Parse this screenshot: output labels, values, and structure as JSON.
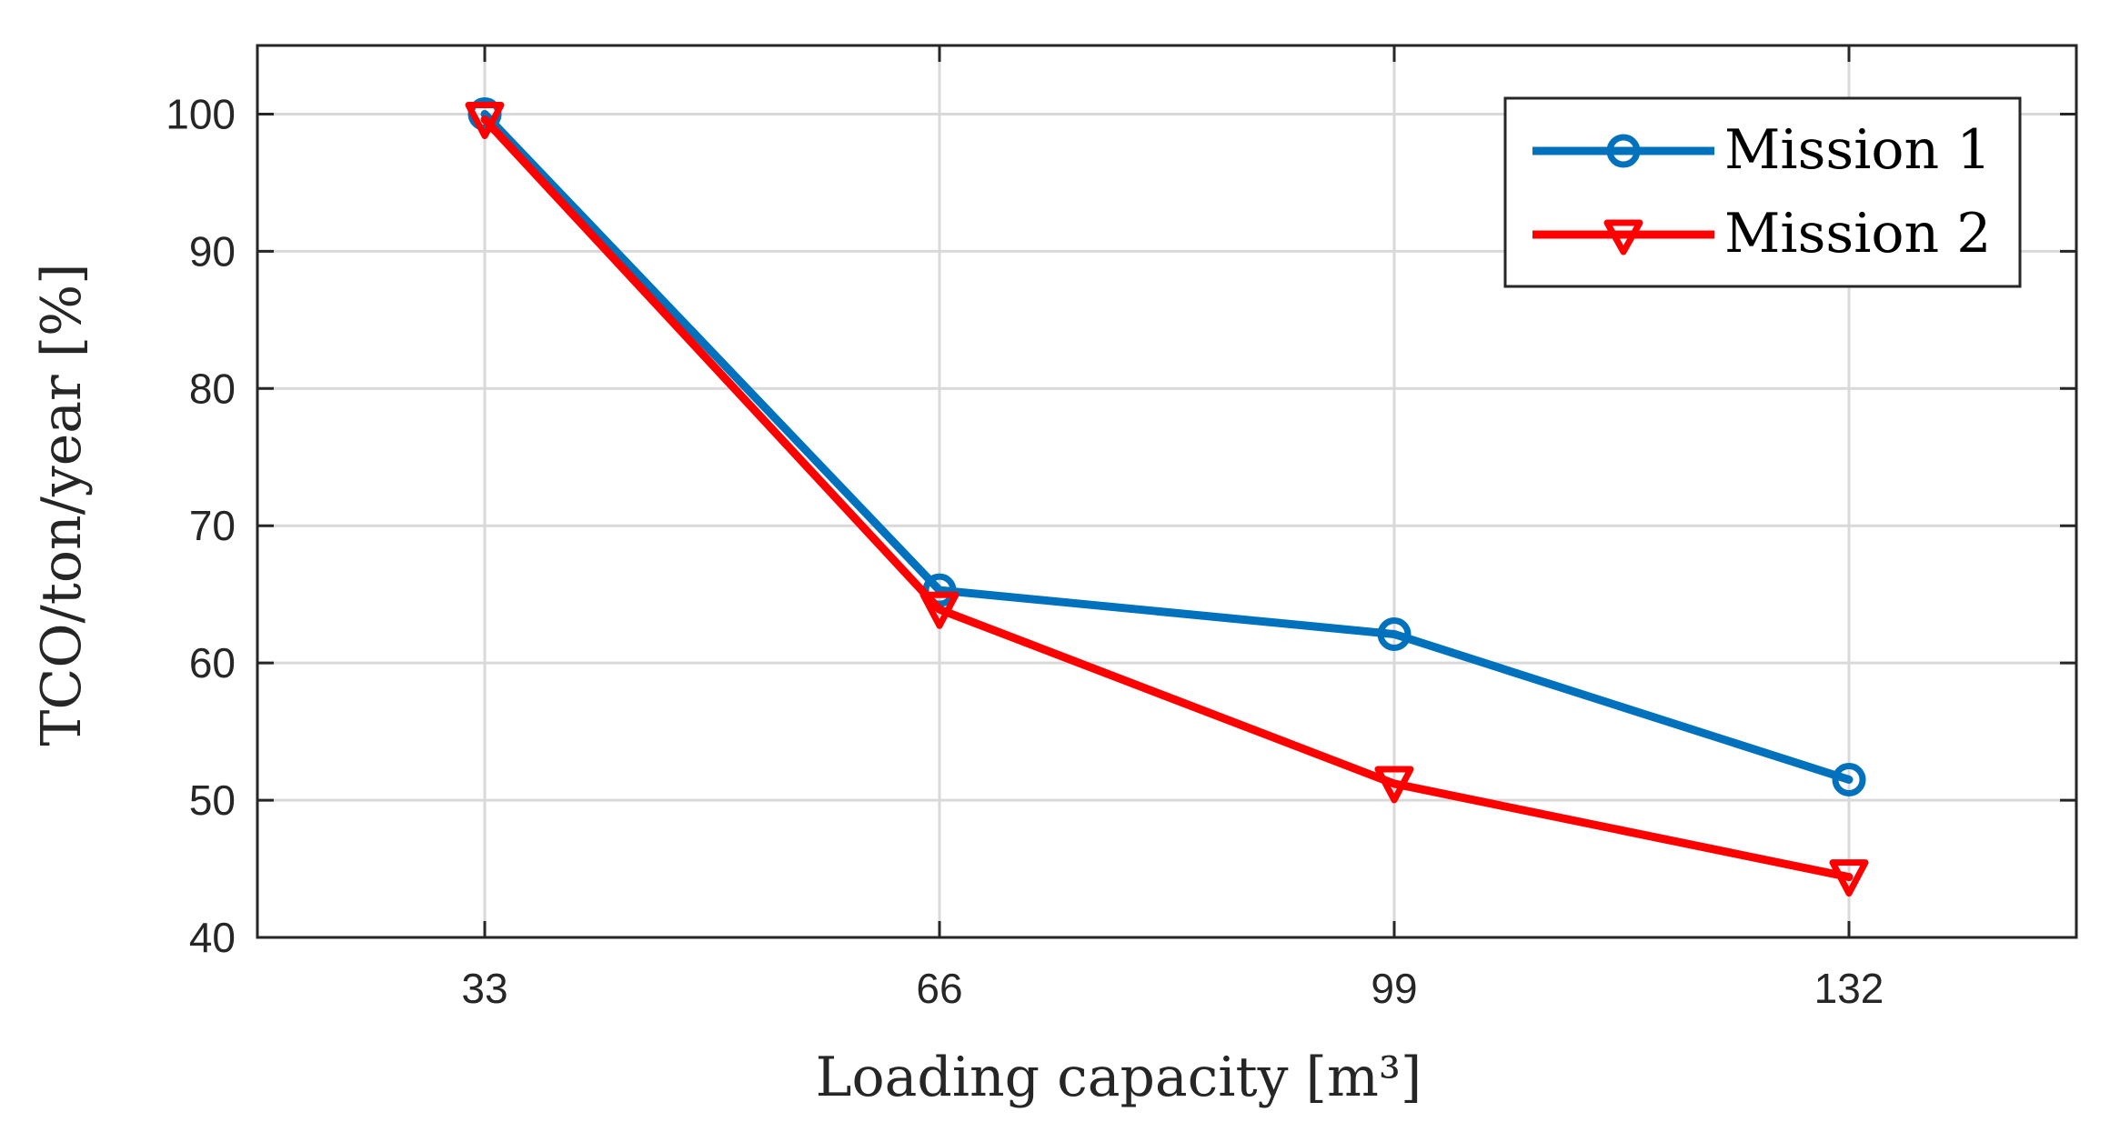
{
  "chart_data": {
    "type": "line",
    "title": "",
    "xlabel": "Loading capacity [m³]",
    "ylabel": "TCO/ton/year [%]",
    "x": [
      33,
      66,
      99,
      132
    ],
    "xlim": [
      16.5,
      148.5
    ],
    "ylim": [
      40,
      105
    ],
    "xticks": [
      "33",
      "66",
      "99",
      "132"
    ],
    "yticks": [
      "40",
      "50",
      "60",
      "70",
      "80",
      "90",
      "100"
    ],
    "grid": true,
    "legend_position": "top-right",
    "series": [
      {
        "name": "Mission 1",
        "values": [
          100,
          65.3,
          62.1,
          51.5
        ],
        "color": "#0072BD",
        "marker": "circle"
      },
      {
        "name": "Mission 2",
        "values": [
          99.6,
          63.9,
          51.2,
          44.4
        ],
        "color": "#FF0000",
        "marker": "triangle-down"
      }
    ]
  }
}
